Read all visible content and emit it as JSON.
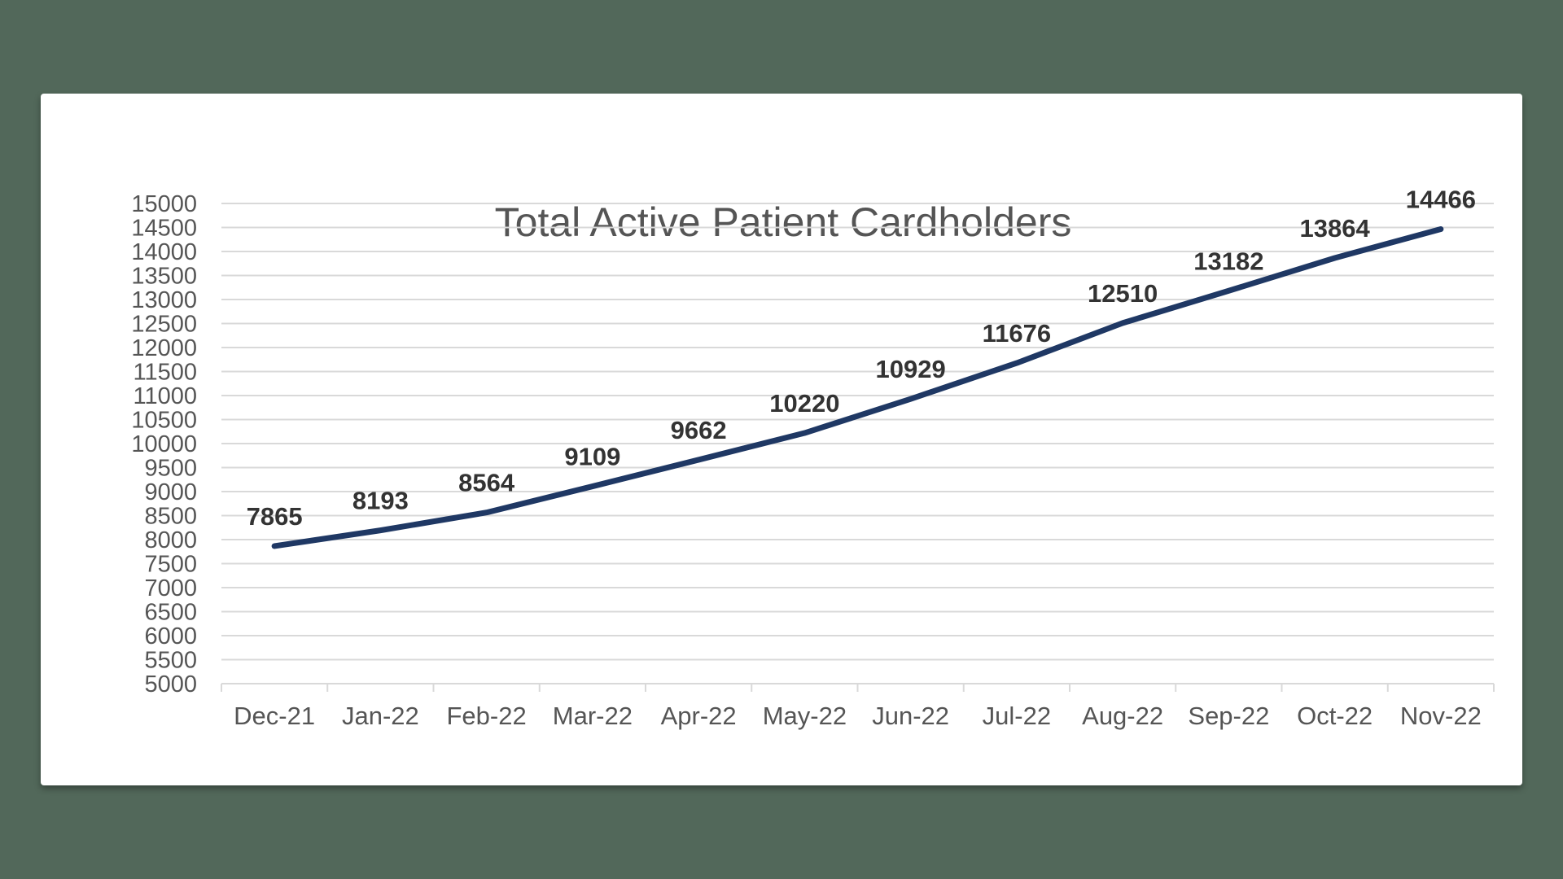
{
  "chart_data": {
    "type": "line",
    "title": "Total Active Patient Cardholders",
    "xlabel": "",
    "ylabel": "",
    "categories": [
      "Dec-21",
      "Jan-22",
      "Feb-22",
      "Mar-22",
      "Apr-22",
      "May-22",
      "Jun-22",
      "Jul-22",
      "Aug-22",
      "Sep-22",
      "Oct-22",
      "Nov-22"
    ],
    "series": [
      {
        "name": "Total Active Patient Cardholders",
        "values": [
          7865,
          8193,
          8564,
          9109,
          9662,
          10220,
          10929,
          11676,
          12510,
          13182,
          13864,
          14466
        ],
        "color": "#1f3864"
      }
    ],
    "ylim": [
      5000,
      15000
    ],
    "yticks": [
      "5000",
      "5500",
      "6000",
      "6500",
      "7000",
      "7500",
      "8000",
      "8500",
      "9000",
      "9500",
      "10000",
      "10500",
      "11000",
      "11500",
      "12000",
      "12500",
      "13000",
      "13500",
      "14000",
      "14500",
      "15000"
    ],
    "data_labels": [
      "7865",
      "8193",
      "8564",
      "9109",
      "9662",
      "10220",
      "10929",
      "11676",
      "12510",
      "13182",
      "13864",
      "14466"
    ],
    "grid": true,
    "legend": "none"
  }
}
